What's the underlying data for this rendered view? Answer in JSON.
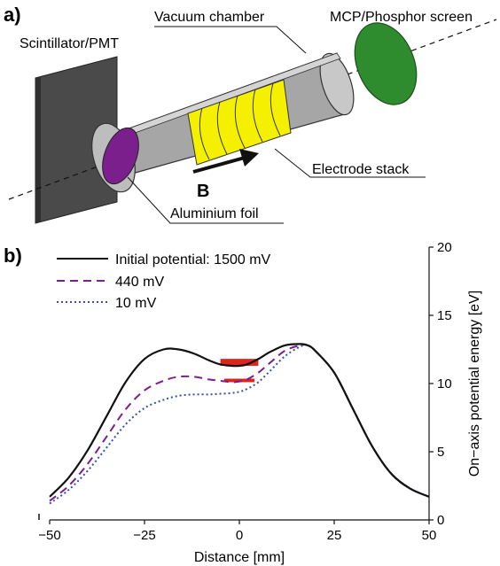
{
  "panel_a": {
    "label": "a)",
    "callouts": {
      "vacuum_chamber": "Vacuum chamber",
      "mcp_screen": "MCP/Phosphor screen",
      "scintillator": "Scintillator/PMT",
      "electrode_stack": "Electrode stack",
      "aluminium_foil": "Aluminium foil",
      "field": "B"
    },
    "colors": {
      "scintillator": "#4a4a4a",
      "chamber": "#a6a6a6",
      "chamber_inner": "#c8c8c8",
      "electrodes": "#f5f000",
      "foil": "#7b1f8c",
      "screen": "#2e8b2e"
    }
  },
  "panel_b": {
    "label": "b)",
    "chart_data": {
      "type": "line",
      "xlabel": "Distance [mm]",
      "ylabel": "On−axis potential energy [eV]",
      "xlim": [
        -50,
        50
      ],
      "ylim": [
        0,
        20
      ],
      "x_ticks": [
        -50,
        -25,
        0,
        25,
        50
      ],
      "x_tick_labels": [
        "−50",
        "−25",
        "0",
        "25",
        "50"
      ],
      "y_ticks": [
        0,
        5,
        10,
        15,
        20
      ],
      "y_tick_labels": [
        "0",
        "5",
        "10",
        "15",
        "20"
      ],
      "y_axis_side": "right",
      "legend_position": "top-left",
      "series": [
        {
          "name": "Initial potential: 1500 mV",
          "style": "solid",
          "color": "#111111",
          "x": [
            -50,
            -45,
            -40,
            -35,
            -30,
            -25,
            -20,
            -16,
            -12,
            -8,
            -5,
            -2,
            0,
            2,
            5,
            8,
            12,
            16,
            18,
            20,
            25,
            30,
            35,
            40,
            45,
            50
          ],
          "y": [
            1.7,
            3.1,
            5.1,
            7.6,
            10.1,
            11.8,
            12.5,
            12.5,
            12.2,
            11.7,
            11.4,
            11.3,
            11.3,
            11.4,
            11.8,
            12.3,
            12.8,
            12.9,
            12.8,
            12.4,
            10.8,
            8.1,
            5.4,
            3.4,
            2.3,
            1.7
          ]
        },
        {
          "name": "440 mV",
          "style": "dashed",
          "color": "#7b1f8c",
          "x": [
            -50,
            -45,
            -40,
            -35,
            -30,
            -25,
            -20,
            -16,
            -12,
            -8,
            -5,
            -2,
            0,
            2,
            5,
            8,
            12,
            16,
            18,
            20,
            25,
            30,
            35,
            40,
            45,
            50
          ],
          "y": [
            1.4,
            2.5,
            4.1,
            6.1,
            8.1,
            9.5,
            10.2,
            10.5,
            10.5,
            10.3,
            10.2,
            10.1,
            10.15,
            10.3,
            10.8,
            11.5,
            12.4,
            12.8,
            12.8,
            12.4,
            10.8,
            8.1,
            5.4,
            3.4,
            2.3,
            1.7
          ]
        },
        {
          "name": "10 mV",
          "style": "dotted",
          "color": "#3a4fa8",
          "x": [
            -50,
            -45,
            -40,
            -35,
            -30,
            -25,
            -20,
            -16,
            -12,
            -8,
            -5,
            -2,
            0,
            2,
            5,
            8,
            12,
            16,
            18,
            20,
            25,
            30,
            35,
            40,
            45,
            50
          ],
          "y": [
            1.2,
            2.2,
            3.6,
            5.3,
            7.0,
            8.2,
            8.8,
            9.1,
            9.2,
            9.2,
            9.25,
            9.3,
            9.4,
            9.6,
            10.1,
            10.9,
            12.0,
            12.7,
            12.8,
            12.4,
            10.8,
            8.1,
            5.4,
            3.4,
            2.3,
            1.7
          ]
        }
      ],
      "filled_regions": [
        {
          "color": "#e0241b",
          "x": [
            -5,
            5
          ],
          "y_bottom": 11.3,
          "y_top": 11.8
        },
        {
          "color": "#e0241b",
          "x": [
            -4,
            4
          ],
          "y_bottom": 10.1,
          "y_top": 10.35
        }
      ]
    }
  }
}
